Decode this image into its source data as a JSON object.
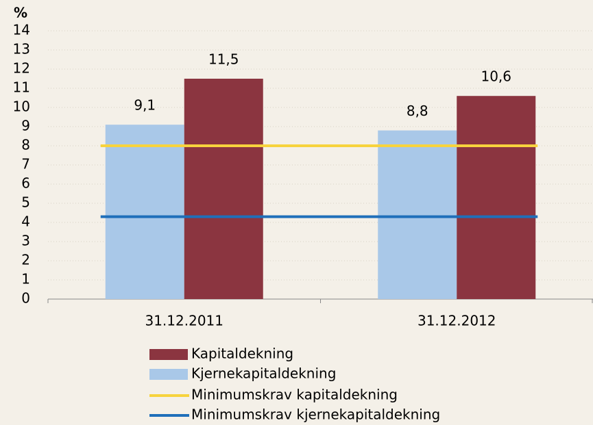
{
  "chart_data": {
    "type": "bar",
    "y_label": "%",
    "categories": [
      "31.12.2011",
      "31.12.2012"
    ],
    "series": [
      {
        "name": "Kjernekapitaldekning",
        "type": "bar",
        "color": "#a9c8e8",
        "values": [
          9.1,
          8.8
        ],
        "value_labels": [
          "9,1",
          "8,8"
        ]
      },
      {
        "name": "Kapitaldekning",
        "type": "bar",
        "color": "#8b3540",
        "values": [
          11.5,
          10.6
        ],
        "value_labels": [
          "11,5",
          "10,6"
        ]
      },
      {
        "name": "Minimumskrav kapitaldekning",
        "type": "line",
        "color": "#f7d33d",
        "values": [
          8,
          8
        ]
      },
      {
        "name": "Minimumskrav kjernekapitaldekning",
        "type": "line",
        "color": "#1f6fba",
        "values": [
          4.3,
          4.3
        ]
      }
    ],
    "ylim": [
      0,
      14
    ],
    "yticks": [
      0,
      1,
      2,
      3,
      4,
      5,
      6,
      7,
      8,
      9,
      10,
      11,
      12,
      13,
      14
    ],
    "grid": true
  }
}
